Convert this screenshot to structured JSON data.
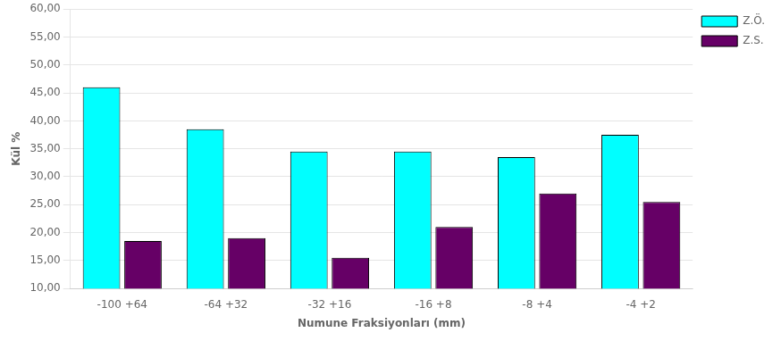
{
  "chart_data": {
    "type": "bar",
    "categories": [
      "-100 +64",
      "-64 +32",
      "-32 +16",
      "-16 +8",
      "-8 +4",
      "-4 +2"
    ],
    "series": [
      {
        "name": "Z.Ö.",
        "color": "#00FFFF",
        "values": [
          46.0,
          38.5,
          34.5,
          34.5,
          33.5,
          37.5
        ]
      },
      {
        "name": "Z.S.",
        "color": "#660066",
        "values": [
          18.5,
          19.0,
          15.5,
          21.0,
          27.0,
          25.5
        ]
      }
    ],
    "xlabel": "Numune Fraksiyonları (mm)",
    "ylabel": "Kül %",
    "ylim": [
      10.0,
      60.0
    ],
    "yticks": [
      {
        "value": 10.0,
        "label": "10,00"
      },
      {
        "value": 15.0,
        "label": "15,00"
      },
      {
        "value": 20.0,
        "label": "20,00"
      },
      {
        "value": 25.0,
        "label": "25,00"
      },
      {
        "value": 30.0,
        "label": "30,00"
      },
      {
        "value": 35.0,
        "label": "35,00"
      },
      {
        "value": 40.0,
        "label": "40,00"
      },
      {
        "value": 45.0,
        "label": "45,00"
      },
      {
        "value": 50.0,
        "label": "50,00"
      },
      {
        "value": 55.0,
        "label": "55,00"
      },
      {
        "value": 60.0,
        "label": "60,00"
      }
    ],
    "grid": true,
    "legend": "right"
  }
}
